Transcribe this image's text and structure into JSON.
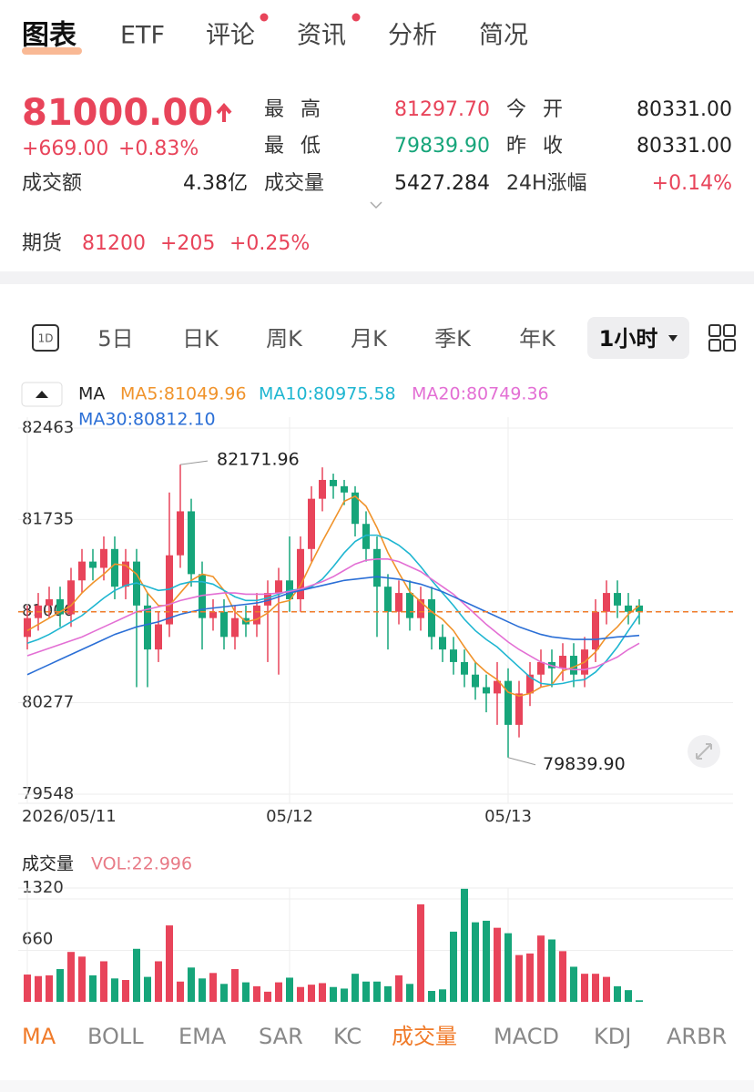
{
  "tabs": [
    "图表",
    "ETF",
    "评论",
    "资讯",
    "分析",
    "简况"
  ],
  "quote": {
    "price": "81000.00",
    "change": "+669.00",
    "change_pct": "+0.83%",
    "turnover_label": "成交额",
    "turnover": "4.38亿",
    "stats": [
      [
        "最高",
        "81297.70",
        "今开",
        "80331.00"
      ],
      [
        "最低",
        "79839.90",
        "昨收",
        "80331.00"
      ],
      [
        "成交量",
        "5427.284",
        "24H涨幅",
        "+0.14%"
      ]
    ]
  },
  "futures": [
    "期货",
    "81200",
    "+205",
    "+0.25%"
  ],
  "periods": [
    "1D",
    "5日",
    "日K",
    "周K",
    "月K",
    "季K",
    "年K",
    "1小时"
  ],
  "legend_title": "MA",
  "indicators": [
    "MA",
    "BOLL",
    "EMA",
    "SAR",
    "KC",
    "成交量",
    "MACD",
    "KDJ",
    "ARBR"
  ],
  "chart_data": [
    {
      "type": "candlestick",
      "up_color": "#e8445a",
      "down_color": "#16a57a",
      "categories": [
        "2026/05/11",
        null,
        null,
        null,
        null,
        null,
        null,
        null,
        null,
        null,
        null,
        null,
        null,
        null,
        null,
        null,
        null,
        null,
        null,
        null,
        null,
        null,
        null,
        null,
        "05/12",
        null,
        null,
        null,
        null,
        null,
        null,
        null,
        null,
        null,
        null,
        null,
        null,
        null,
        null,
        null,
        null,
        null,
        null,
        null,
        "05/13",
        null,
        null,
        null,
        null,
        null,
        null,
        null,
        null,
        null,
        null,
        null,
        null
      ],
      "open": [
        80800,
        80950,
        81050,
        81100,
        80980,
        81250,
        81400,
        81350,
        81500,
        81200,
        81400,
        81050,
        80700,
        80900,
        81450,
        81800,
        81300,
        80950,
        81000,
        80800,
        80950,
        80900,
        81050,
        81150,
        81250,
        81100,
        81500,
        81900,
        82050,
        82000,
        81950,
        81700,
        81500,
        81200,
        81000,
        81150,
        80950,
        81100,
        80800,
        80700,
        80600,
        80500,
        80400,
        80350,
        80450,
        80100,
        80350,
        80500,
        80600,
        80550,
        80650,
        80500,
        80700,
        81000,
        81150,
        81050,
        81050
      ],
      "high": [
        81050,
        81150,
        81200,
        81200,
        81350,
        81500,
        81500,
        81600,
        81600,
        81500,
        81500,
        81150,
        81000,
        81950,
        82171.96,
        81900,
        81400,
        81100,
        81100,
        81050,
        81050,
        81150,
        81250,
        81350,
        81600,
        81600,
        82000,
        82150,
        82100,
        82050,
        82000,
        81800,
        81600,
        81300,
        81250,
        81250,
        81200,
        81200,
        80900,
        80800,
        80700,
        80600,
        80500,
        80600,
        80550,
        80450,
        80600,
        80700,
        80700,
        80750,
        80750,
        80800,
        81100,
        81250,
        81250,
        81150,
        81100
      ],
      "low": [
        80700,
        80850,
        80950,
        80880,
        80880,
        81150,
        81250,
        81250,
        81100,
        81100,
        80400,
        80400,
        80600,
        80800,
        81350,
        81200,
        80700,
        80850,
        80700,
        80700,
        80800,
        80800,
        80600,
        80500,
        81000,
        81000,
        81400,
        81800,
        81900,
        81850,
        81600,
        81400,
        80800,
        80700,
        80900,
        80850,
        80850,
        80700,
        80600,
        80500,
        80400,
        80300,
        80200,
        80100,
        79839.9,
        80000,
        80250,
        80400,
        80400,
        80450,
        80400,
        80400,
        80600,
        80900,
        80950,
        80900,
        80900
      ],
      "close": [
        80950,
        81050,
        81100,
        80980,
        81250,
        81400,
        81350,
        81500,
        81200,
        81400,
        81050,
        80700,
        80900,
        81450,
        81800,
        81300,
        80950,
        81000,
        80800,
        80950,
        80900,
        81050,
        81150,
        81250,
        81100,
        81500,
        81900,
        82050,
        82000,
        81950,
        81700,
        81500,
        81200,
        81000,
        81150,
        80950,
        81100,
        80800,
        80700,
        80600,
        80500,
        80400,
        80350,
        80450,
        80100,
        80350,
        80500,
        80600,
        80550,
        80650,
        80500,
        80700,
        81000,
        81150,
        81050,
        81000,
        81000
      ],
      "series": [
        {
          "name": "MA5:81049.96",
          "color": "#f0932b",
          "values": [
            80850,
            80900,
            80950,
            81000,
            81050,
            81150,
            81230,
            81300,
            81380,
            81370,
            81300,
            81150,
            81050,
            81050,
            81150,
            81250,
            81300,
            81280,
            81170,
            81000,
            80920,
            80940,
            80990,
            81070,
            81090,
            81210,
            81390,
            81560,
            81720,
            81880,
            81920,
            81840,
            81670,
            81470,
            81310,
            81160,
            81080,
            81000,
            80940,
            80850,
            80720,
            80600,
            80520,
            80460,
            80360,
            80330,
            80350,
            80400,
            80420,
            80530,
            80560,
            80600,
            80680,
            80800,
            80880,
            80980,
            81049.96
          ]
        },
        {
          "name": "MA10:80975.58",
          "color": "#1fb6d1",
          "values": [
            80750,
            80780,
            80820,
            80870,
            80920,
            80970,
            81040,
            81110,
            81170,
            81210,
            81230,
            81200,
            81170,
            81180,
            81220,
            81240,
            81240,
            81220,
            81170,
            81120,
            81090,
            81090,
            81110,
            81140,
            81170,
            81180,
            81200,
            81260,
            81360,
            81470,
            81560,
            81610,
            81610,
            81580,
            81530,
            81460,
            81360,
            81250,
            81150,
            81050,
            80940,
            80850,
            80780,
            80720,
            80640,
            80560,
            80480,
            80430,
            80420,
            80430,
            80450,
            80460,
            80520,
            80610,
            80720,
            80850,
            80975.58
          ]
        },
        {
          "name": "MA20:80749.36",
          "color": "#e36fd4",
          "values": [
            80650,
            80680,
            80710,
            80740,
            80770,
            80800,
            80840,
            80880,
            80920,
            80960,
            81000,
            81020,
            81040,
            81060,
            81090,
            81110,
            81130,
            81140,
            81150,
            81150,
            81140,
            81140,
            81140,
            81150,
            81160,
            81180,
            81210,
            81240,
            81280,
            81330,
            81380,
            81410,
            81420,
            81420,
            81400,
            81360,
            81320,
            81260,
            81200,
            81140,
            81060,
            80980,
            80900,
            80830,
            80760,
            80700,
            80650,
            80600,
            80570,
            80550,
            80540,
            80540,
            80560,
            80600,
            80640,
            80700,
            80749.36
          ]
        },
        {
          "name": "MA30:80812.10",
          "color": "#2b6fd6",
          "values": [
            80500,
            80540,
            80580,
            80620,
            80660,
            80700,
            80740,
            80780,
            80820,
            80850,
            80880,
            80900,
            80920,
            80950,
            80980,
            81000,
            81020,
            81030,
            81040,
            81050,
            81060,
            81070,
            81090,
            81120,
            81150,
            81170,
            81190,
            81210,
            81230,
            81250,
            81260,
            81270,
            81280,
            81270,
            81260,
            81240,
            81220,
            81190,
            81160,
            81120,
            81080,
            81040,
            81000,
            80960,
            80920,
            80880,
            80850,
            80820,
            80800,
            80790,
            80780,
            80780,
            80780,
            80790,
            80800,
            80805,
            80812.1
          ]
        }
      ],
      "max_label": "82171.96",
      "min_label": "79839.90",
      "ylim": [
        79548,
        82463
      ],
      "yticks": [
        82463,
        81735,
        81006,
        80277,
        79548
      ],
      "grid": true
    },
    {
      "type": "bar",
      "title": "成交量",
      "subtitle": "VOL:22.996",
      "values": [
        350,
        330,
        340,
        420,
        640,
        580,
        340,
        520,
        300,
        280,
        680,
        320,
        520,
        980,
        260,
        440,
        300,
        370,
        230,
        420,
        250,
        200,
        130,
        250,
        310,
        190,
        220,
        240,
        190,
        170,
        360,
        260,
        260,
        200,
        340,
        230,
        1250,
        140,
        160,
        900,
        1450,
        1020,
        1040,
        950,
        880,
        600,
        620,
        850,
        800,
        650,
        450,
        360,
        360,
        320,
        200,
        150,
        20
      ],
      "ylim": [
        0,
        1460
      ],
      "yticks": [
        660,
        1320
      ],
      "grid": true
    }
  ]
}
